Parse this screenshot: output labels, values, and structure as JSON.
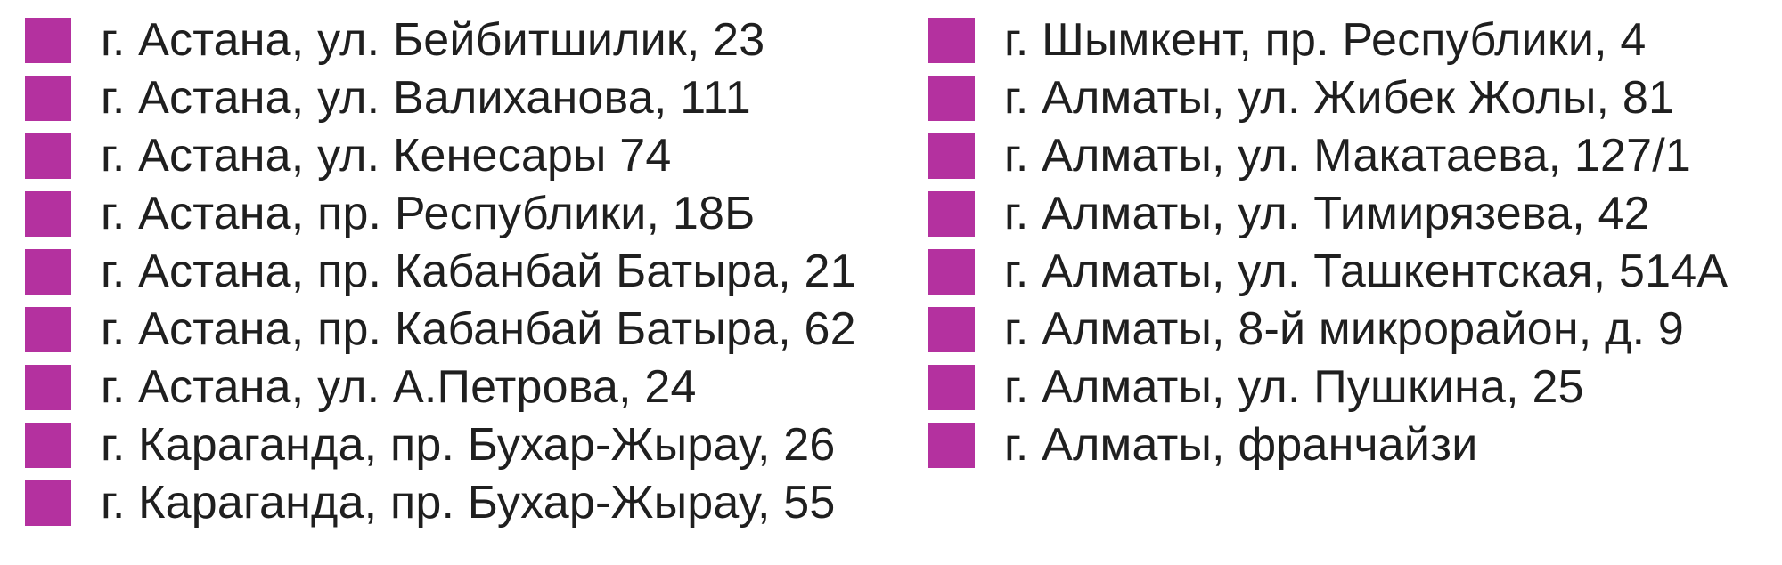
{
  "colors": {
    "accent": "#b4319f",
    "text": "#1f1f1f",
    "background": "#ffffff"
  },
  "columns": {
    "left": {
      "items": [
        "г. Астана, ул. Бейбитшилик, 23",
        "г. Астана, ул. Валиханова, 111",
        "г. Астана, ул. Кенесары 74",
        "г. Астана, пр. Республики, 18Б",
        "г. Астана, пр. Кабанбай Батыра, 21",
        "г. Астана, пр. Кабанбай Батыра, 62",
        "г. Астана, ул. А.Петрова, 24",
        "г. Караганда, пр. Бухар-Жырау, 26",
        "г. Караганда, пр. Бухар-Жырау, 55"
      ]
    },
    "right": {
      "items": [
        "г. Шымкент, пр. Республики, 4",
        "г. Алматы, ул. Жибек Жолы, 81",
        "г. Алматы, ул. Макатаева, 127/1",
        "г. Алматы, ул. Тимирязева, 42",
        "г. Алматы, ул. Ташкентская, 514А",
        "г. Алматы, 8-й микрорайон, д. 9",
        "г. Алматы, ул. Пушкина, 25",
        "г. Алматы, франчайзи"
      ]
    }
  }
}
